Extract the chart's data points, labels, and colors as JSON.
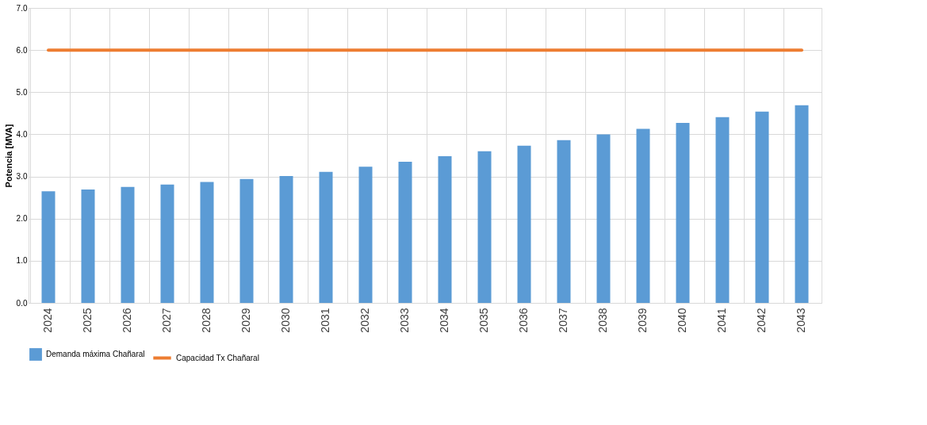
{
  "chart_data": {
    "type": "bar",
    "categories": [
      "2024",
      "2025",
      "2026",
      "2027",
      "2028",
      "2029",
      "2030",
      "2031",
      "2032",
      "2033",
      "2034",
      "2035",
      "2036",
      "2037",
      "2038",
      "2039",
      "2040",
      "2041",
      "2042",
      "2043"
    ],
    "ylabel": "Potencia [MVA]",
    "series": [
      {
        "name": "Demanda máxima Chañaral",
        "color": "#5b9bd5",
        "values": [
          2.65,
          2.69,
          2.75,
          2.81,
          2.87,
          2.94,
          3.01,
          3.11,
          3.23,
          3.35,
          3.48,
          3.6,
          3.73,
          3.86,
          4.0,
          4.13,
          4.27,
          4.41,
          4.54,
          4.69
        ]
      },
      {
        "name": "Capacidad Tx Chañaral",
        "color": "#ed7d31",
        "type": "line",
        "values": [
          6,
          6,
          6,
          6,
          6,
          6,
          6,
          6,
          6,
          6,
          6,
          6,
          6,
          6,
          6,
          6,
          6,
          6,
          6,
          6
        ]
      }
    ],
    "ylim": [
      0,
      7
    ],
    "yticks": [
      {
        "value": 0,
        "label": "0.0"
      },
      {
        "value": 1,
        "label": "1.0"
      },
      {
        "value": 2,
        "label": "2.0"
      },
      {
        "value": 3,
        "label": "3.0"
      },
      {
        "value": 4,
        "label": "4.0"
      },
      {
        "value": 5,
        "label": "5.0"
      },
      {
        "value": 6,
        "label": "6.0"
      },
      {
        "value": 7,
        "label": "7.0"
      }
    ],
    "grid": true,
    "legend": "bottom",
    "marker": "none",
    "line_style": "solid"
  }
}
